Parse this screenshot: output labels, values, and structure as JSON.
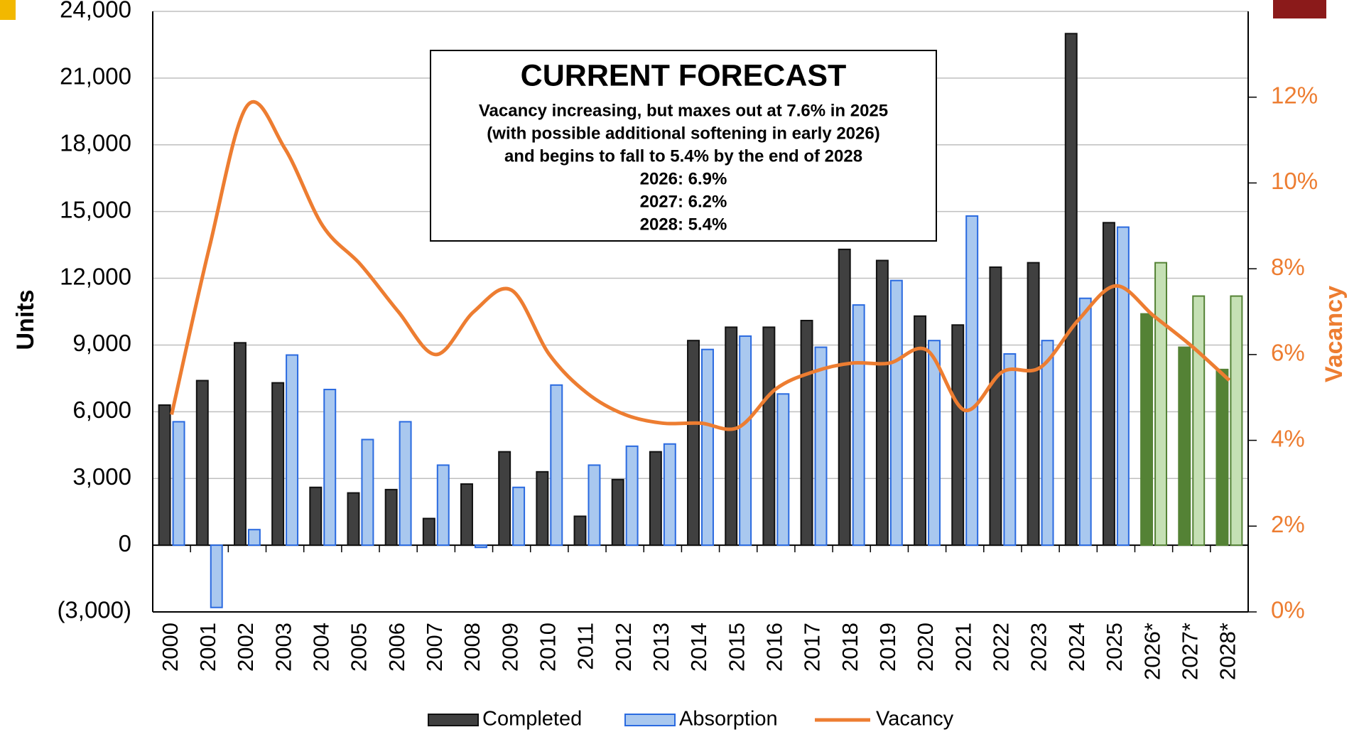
{
  "chart_data": {
    "type": "bar-line",
    "y_label": "Units",
    "y2_label": "Vacancy",
    "annotation": {
      "title": "CURRENT FORECAST",
      "lines": [
        "Vacancy increasing, but maxes out at 7.6% in 2025",
        "(with possible additional softening in early 2026)",
        "and begins to fall to 5.4% by the end of 2028",
        "2026: 6.9%",
        "2027: 6.2%",
        "2028: 5.4%"
      ]
    },
    "categories": [
      "2000",
      "2001",
      "2002",
      "2003",
      "2004",
      "2005",
      "2006",
      "2007",
      "2008",
      "2009",
      "2010",
      "2011",
      "2012",
      "2013",
      "2014",
      "2015",
      "2016",
      "2017",
      "2018",
      "2019",
      "2020",
      "2021",
      "2022",
      "2023",
      "2024",
      "2025",
      "2026*",
      "2027*",
      "2028*"
    ],
    "series": [
      {
        "name": "Completed",
        "type": "bar",
        "color": "#404040",
        "stroke": "#111111",
        "colors": [
          "#404040",
          "#404040",
          "#404040",
          "#404040",
          "#404040",
          "#404040",
          "#404040",
          "#404040",
          "#404040",
          "#404040",
          "#404040",
          "#404040",
          "#404040",
          "#404040",
          "#404040",
          "#404040",
          "#404040",
          "#404040",
          "#404040",
          "#404040",
          "#404040",
          "#404040",
          "#404040",
          "#404040",
          "#404040",
          "#404040",
          "#548235",
          "#548235",
          "#548235"
        ],
        "values": [
          6300,
          7400,
          9100,
          7300,
          2600,
          2350,
          2500,
          1200,
          2750,
          4200,
          3300,
          1300,
          2950,
          4200,
          9200,
          9800,
          9800,
          10100,
          13300,
          12800,
          10300,
          9900,
          12500,
          12700,
          23000,
          14500,
          10400,
          8900,
          7900
        ]
      },
      {
        "name": "Absorption",
        "type": "bar",
        "color": "#a9c8ef",
        "stroke": "#2a6ae0",
        "colors": [
          "#a9c8ef",
          "#a9c8ef",
          "#a9c8ef",
          "#a9c8ef",
          "#a9c8ef",
          "#a9c8ef",
          "#a9c8ef",
          "#a9c8ef",
          "#a9c8ef",
          "#a9c8ef",
          "#a9c8ef",
          "#a9c8ef",
          "#a9c8ef",
          "#a9c8ef",
          "#a9c8ef",
          "#a9c8ef",
          "#a9c8ef",
          "#a9c8ef",
          "#a9c8ef",
          "#a9c8ef",
          "#a9c8ef",
          "#a9c8ef",
          "#a9c8ef",
          "#a9c8ef",
          "#a9c8ef",
          "#a9c8ef",
          "#c5e0b4",
          "#c5e0b4",
          "#c5e0b4"
        ],
        "values": [
          5550,
          -2800,
          700,
          8550,
          7000,
          4750,
          5550,
          3600,
          -100,
          2600,
          7200,
          3600,
          4450,
          4550,
          8800,
          9400,
          6800,
          8900,
          10800,
          11900,
          9200,
          14800,
          8600,
          9200,
          11100,
          14300,
          12700,
          11200,
          11200
        ]
      },
      {
        "name": "Vacancy",
        "type": "line",
        "axis": "y2",
        "color": "#ed7d31",
        "values": [
          4.6,
          8.5,
          11.8,
          10.8,
          9.0,
          8.1,
          7.0,
          6.0,
          7.0,
          7.5,
          6.0,
          5.1,
          4.6,
          4.4,
          4.4,
          4.3,
          5.2,
          5.6,
          5.8,
          5.8,
          6.1,
          4.7,
          5.6,
          5.7,
          6.8,
          7.6,
          6.9,
          6.2,
          5.4
        ]
      }
    ],
    "ylim": [
      -3000,
      24000
    ],
    "yticks": [
      {
        "value": -3000,
        "label": "(3,000)"
      },
      0,
      {
        "value": 3000,
        "label": "3,000"
      },
      {
        "value": 6000,
        "label": "6,000"
      },
      {
        "value": 9000,
        "label": "9,000"
      },
      {
        "value": 12000,
        "label": "12,000"
      },
      {
        "value": 15000,
        "label": "15,000"
      },
      {
        "value": 18000,
        "label": "18,000"
      },
      {
        "value": 21000,
        "label": "21,000"
      },
      {
        "value": 24000,
        "label": "24,000"
      }
    ],
    "y2lim": [
      0,
      14
    ],
    "y2ticks": [
      {
        "value": 0,
        "label": "0%"
      },
      {
        "value": 2,
        "label": "2%"
      },
      {
        "value": 4,
        "label": "4%"
      },
      {
        "value": 6,
        "label": "6%"
      },
      {
        "value": 8,
        "label": "8%"
      },
      {
        "value": 10,
        "label": "10%"
      },
      {
        "value": 12,
        "label": "12%"
      }
    ],
    "grid": true,
    "legend": "bottom"
  }
}
